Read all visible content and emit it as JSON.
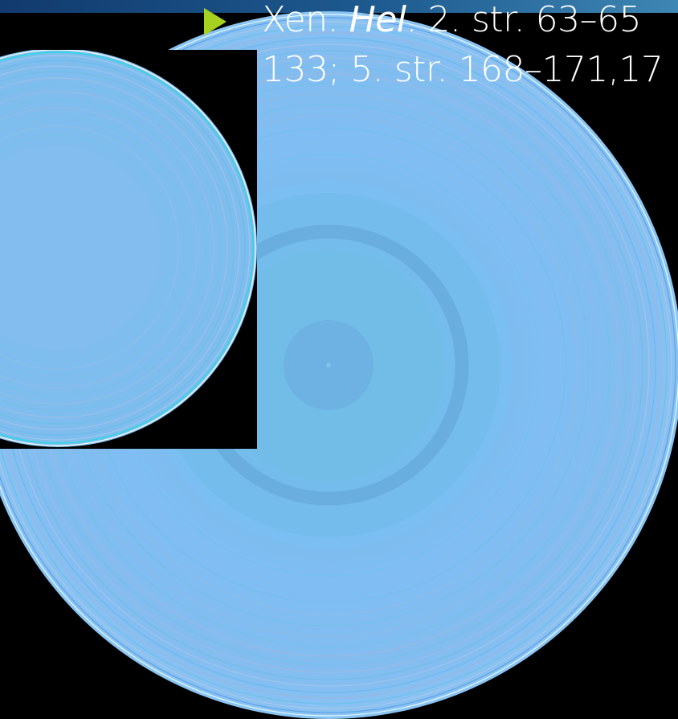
{
  "citation": {
    "line1_prefix": "Xen. ",
    "line1_italic": "Hel",
    "line1_suffix": ". 2. str. 63–65",
    "line2": "133; 5. str. 168–171,17"
  },
  "colors": {
    "background": "#000000",
    "disc": "#7fbdf0",
    "bullet": "#a6d11f",
    "text": "#ffffff"
  },
  "icons": {
    "bullet": "triangle-right-icon"
  }
}
